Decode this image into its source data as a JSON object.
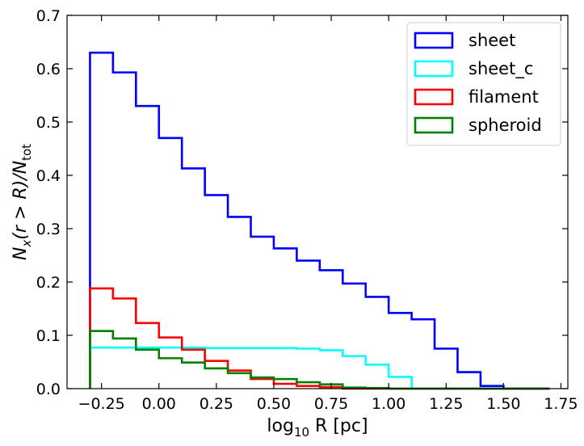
{
  "chart_data": {
    "type": "step-histogram",
    "title": "",
    "xlabel": {
      "main": "log",
      "sub": "10",
      "rest": " R [pc]"
    },
    "ylabel": {
      "n": "N",
      "nsub": "x",
      "mid": "(r > R)/",
      "n2": "N",
      "n2sub": "tot"
    },
    "xlim": [
      -0.4,
      1.78
    ],
    "ylim": [
      0,
      0.7
    ],
    "xticks": [
      -0.25,
      0.0,
      0.25,
      0.5,
      0.75,
      1.0,
      1.25,
      1.5,
      1.75
    ],
    "xtick_labels": [
      "−0.25",
      "0.00",
      "0.25",
      "0.50",
      "0.75",
      "1.00",
      "1.25",
      "1.50",
      "1.75"
    ],
    "yticks": [
      0.0,
      0.1,
      0.2,
      0.3,
      0.4,
      0.5,
      0.6,
      0.7
    ],
    "ytick_labels": [
      "0.0",
      "0.1",
      "0.2",
      "0.3",
      "0.4",
      "0.5",
      "0.6",
      "0.7"
    ],
    "bin_edges": [
      -0.3,
      -0.2,
      -0.1,
      0.0,
      0.1,
      0.2,
      0.3,
      0.4,
      0.5,
      0.6,
      0.7,
      0.8,
      0.9,
      1.0,
      1.1,
      1.2,
      1.3,
      1.4,
      1.5,
      1.6,
      1.7
    ],
    "legend_position": "top-right",
    "series": [
      {
        "name": "sheet",
        "color": "#0000ff",
        "values": [
          0.63,
          0.593,
          0.53,
          0.47,
          0.413,
          0.363,
          0.322,
          0.285,
          0.263,
          0.24,
          0.222,
          0.197,
          0.172,
          0.142,
          0.13,
          0.075,
          0.031,
          0.005,
          0.0,
          0.0
        ]
      },
      {
        "name": "sheet_c",
        "color": "#00ffff",
        "values": [
          0.077,
          0.077,
          0.077,
          0.077,
          0.077,
          0.076,
          0.076,
          0.076,
          0.076,
          0.075,
          0.072,
          0.061,
          0.045,
          0.022,
          0.0,
          0.0,
          0.0,
          0.0,
          0.0,
          0.0
        ]
      },
      {
        "name": "filament",
        "color": "#ff0000",
        "values": [
          0.188,
          0.169,
          0.123,
          0.096,
          0.073,
          0.052,
          0.034,
          0.018,
          0.009,
          0.005,
          0.003,
          0.0,
          0.0,
          0.0,
          0.0,
          0.0,
          0.0,
          0.0,
          0.0,
          0.0
        ]
      },
      {
        "name": "spheroid",
        "color": "#008000",
        "values": [
          0.108,
          0.094,
          0.073,
          0.057,
          0.049,
          0.038,
          0.029,
          0.021,
          0.018,
          0.012,
          0.008,
          0.002,
          0.001,
          0.0,
          0.0,
          0.0,
          0.0,
          0.0,
          0.0,
          0.0
        ]
      }
    ]
  }
}
